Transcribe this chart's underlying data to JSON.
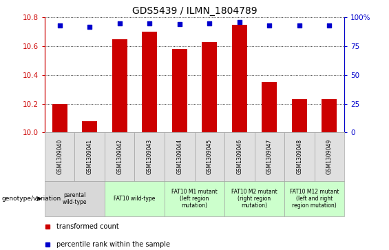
{
  "title": "GDS5439 / ILMN_1804789",
  "samples": [
    "GSM1309040",
    "GSM1309041",
    "GSM1309042",
    "GSM1309043",
    "GSM1309044",
    "GSM1309045",
    "GSM1309046",
    "GSM1309047",
    "GSM1309048",
    "GSM1309049"
  ],
  "bar_values": [
    10.2,
    10.08,
    10.65,
    10.7,
    10.58,
    10.63,
    10.75,
    10.35,
    10.23,
    10.23
  ],
  "dot_values": [
    93,
    92,
    95,
    95,
    94,
    95,
    96,
    93,
    93,
    93
  ],
  "ylim_left": [
    10.0,
    10.8
  ],
  "ylim_right": [
    0,
    100
  ],
  "yticks_left": [
    10.0,
    10.2,
    10.4,
    10.6,
    10.8
  ],
  "yticks_right": [
    0,
    25,
    50,
    75,
    100
  ],
  "bar_color": "#CC0000",
  "dot_color": "#0000CC",
  "bar_width": 0.5,
  "grid_color": "#000000",
  "left_axis_color": "#CC0000",
  "right_axis_color": "#0000CC",
  "genotype_groups": [
    {
      "label": "parental\nwild-type",
      "start": 0,
      "end": 2,
      "color": "#d8d8d8"
    },
    {
      "label": "FAT10 wild-type",
      "start": 2,
      "end": 4,
      "color": "#ccffcc"
    },
    {
      "label": "FAT10 M1 mutant\n(left region\nmutation)",
      "start": 4,
      "end": 6,
      "color": "#ccffcc"
    },
    {
      "label": "FAT10 M2 mutant\n(right region\nmutation)",
      "start": 6,
      "end": 8,
      "color": "#ccffcc"
    },
    {
      "label": "FAT10 M12 mutant\n(left and right\nregion mutation)",
      "start": 8,
      "end": 10,
      "color": "#ccffcc"
    }
  ],
  "legend_items": [
    {
      "color": "#CC0000",
      "label": "transformed count"
    },
    {
      "color": "#0000CC",
      "label": "percentile rank within the sample"
    }
  ],
  "genotype_label": "genotype/variation",
  "sample_bg": "#e0e0e0"
}
